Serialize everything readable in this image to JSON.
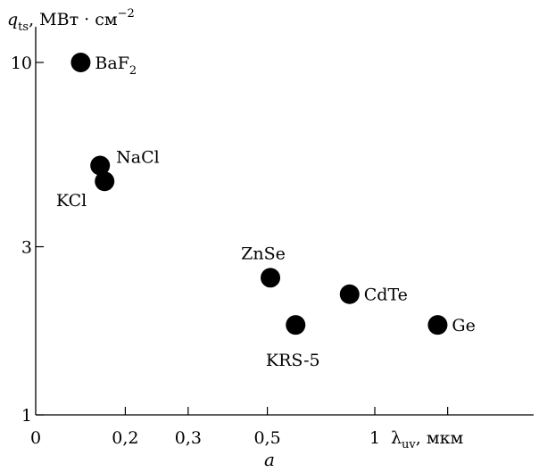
{
  "chart_data": {
    "type": "scatter",
    "title": "",
    "ylabel": {
      "symbol": "q",
      "subscript": "ts",
      "units": ", МВт · см",
      "exponent": "−2"
    },
    "xlabel": {
      "symbol": "λ",
      "subscript": "uv",
      "units": ", мкм"
    },
    "x_scale": "log",
    "y_scale": "log",
    "xlim": [
      0.1,
      2.0
    ],
    "ylim": [
      1,
      12
    ],
    "x_ticks": [
      {
        "value": 0.2,
        "label": "0,2"
      },
      {
        "value": 0.3,
        "label": "0,3"
      },
      {
        "value": 0.5,
        "label": "0,5"
      },
      {
        "value": 1.0,
        "label": "1"
      },
      {
        "value": 1.6,
        "label": ""
      }
    ],
    "x_origin_label": "0",
    "y_ticks": [
      {
        "value": 1,
        "label": "1"
      },
      {
        "value": 3,
        "label": "3"
      },
      {
        "value": 10,
        "label": "10"
      }
    ],
    "points": [
      {
        "name": "BaF2",
        "label_main": "BaF",
        "label_sub": "2",
        "x": 0.15,
        "y": 10.0,
        "label_side": "right"
      },
      {
        "name": "NaCl",
        "label_main": "NaCl",
        "label_sub": "",
        "x": 0.17,
        "y": 5.1,
        "label_side": "upper-right"
      },
      {
        "name": "KCl",
        "label_main": "KCl",
        "label_sub": "",
        "x": 0.175,
        "y": 4.6,
        "label_side": "lower-left"
      },
      {
        "name": "ZnSe",
        "label_main": "ZnSe",
        "label_sub": "",
        "x": 0.51,
        "y": 2.45,
        "label_side": "above"
      },
      {
        "name": "KRS-5",
        "label_main": "KRS-5",
        "label_sub": "",
        "x": 0.6,
        "y": 1.8,
        "label_side": "below"
      },
      {
        "name": "CdTe",
        "label_main": "CdTe",
        "label_sub": "",
        "x": 0.85,
        "y": 2.2,
        "label_side": "right"
      },
      {
        "name": "Ge",
        "label_main": "Ge",
        "label_sub": "",
        "x": 1.5,
        "y": 1.8,
        "label_side": "right"
      }
    ],
    "grid": false,
    "legend": "none"
  },
  "caption": "a"
}
